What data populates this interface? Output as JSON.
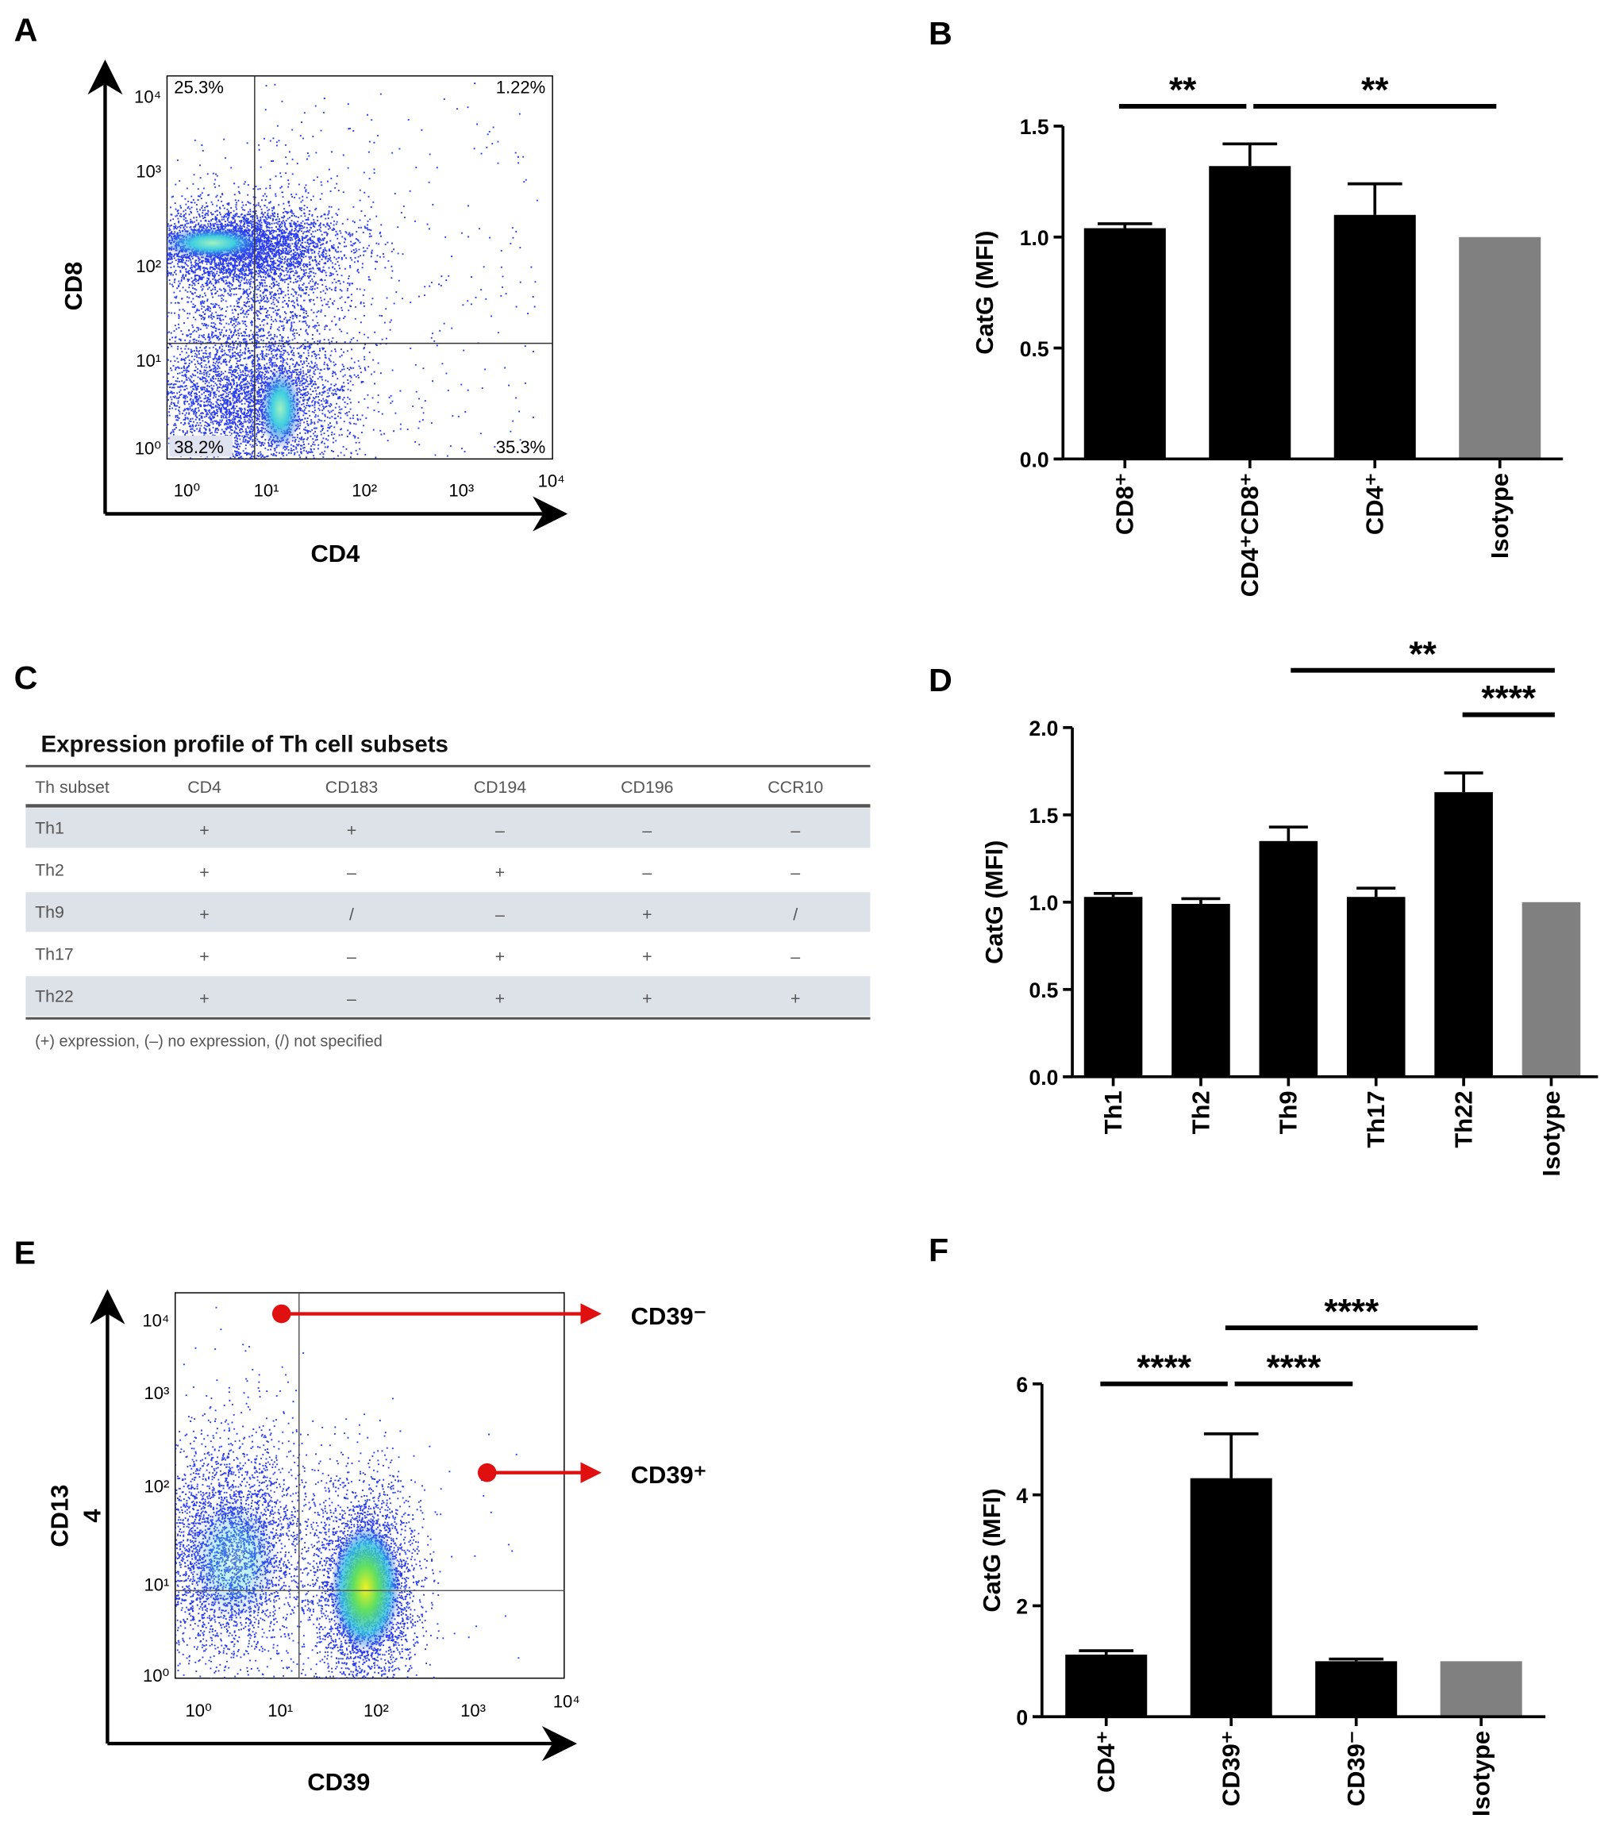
{
  "panels": {
    "a": "A",
    "b": "B",
    "c": "C",
    "d": "D",
    "e": "E",
    "f": "F"
  },
  "flow_a": {
    "xlabel": "CD4",
    "ylabel": "CD8",
    "quadrants": {
      "ul": "25.3%",
      "ur": "1.22%",
      "ll": "38.2%",
      "lr": "35.3%"
    },
    "yticks": [
      "10⁴",
      "10³",
      "10²",
      "10¹",
      "10⁰"
    ],
    "xticks": [
      "10⁰",
      "10¹",
      "10²",
      "10³",
      "10⁴"
    ]
  },
  "flow_e": {
    "xlabel": "CD39",
    "ylabel_line1": "CD13",
    "ylabel_line2": "4",
    "yticks": [
      "10⁴",
      "10³",
      "10²",
      "10¹",
      "10⁰"
    ],
    "xticks": [
      "10⁰",
      "10¹",
      "10²",
      "10³",
      "10⁴"
    ],
    "gates": [
      "CD39⁻",
      "CD39⁺"
    ],
    "arrow_color": "#e01010"
  },
  "table_c": {
    "title": "Expression profile of Th cell subsets",
    "headers": [
      "Th subset",
      "CD4",
      "CD183",
      "CD194",
      "CD196",
      "CCR10"
    ],
    "rows": [
      [
        "Th1",
        "+",
        "+",
        "–",
        "–",
        "–"
      ],
      [
        "Th2",
        "+",
        "–",
        "+",
        "–",
        "–"
      ],
      [
        "Th9",
        "+",
        "/",
        "–",
        "+",
        "/"
      ],
      [
        "Th17",
        "+",
        "–",
        "+",
        "+",
        "–"
      ],
      [
        "Th22",
        "+",
        "–",
        "+",
        "+",
        "+"
      ]
    ],
    "footnote": "(+) expression, (–) no expression, (/) not specified",
    "shade_color": "#dde1e8"
  },
  "chart_data": [
    {
      "id": "B",
      "type": "bar",
      "title": "",
      "xlabel": "",
      "ylabel": "CatG (MFI)",
      "ylim": [
        0,
        1.5
      ],
      "yticks": [
        "0.0",
        "0.5",
        "1.0",
        "1.5"
      ],
      "ytick_values": [
        0,
        0.5,
        1.0,
        1.5
      ],
      "categories": [
        "CD8⁺",
        "CD4⁺CD8⁺",
        "CD4⁺",
        "Isotype"
      ],
      "values": [
        1.04,
        1.32,
        1.1,
        1.0
      ],
      "error_upper": [
        1.06,
        1.42,
        1.24,
        null
      ],
      "colors": [
        "#000000",
        "#000000",
        "#000000",
        "#808080"
      ],
      "significance": [
        {
          "from": 0,
          "to": 1,
          "label": "**",
          "level": 0
        },
        {
          "from": 1,
          "to": 3,
          "label": "**",
          "level": 0
        }
      ]
    },
    {
      "id": "D",
      "type": "bar",
      "title": "",
      "xlabel": "",
      "ylabel": "CatG (MFI)",
      "ylim": [
        0,
        2.0
      ],
      "yticks": [
        "0.0",
        "0.5",
        "1.0",
        "1.5",
        "2.0"
      ],
      "ytick_values": [
        0,
        0.5,
        1.0,
        1.5,
        2.0
      ],
      "categories": [
        "Th1",
        "Th2",
        "Th9",
        "Th17",
        "Th22",
        "Isotype"
      ],
      "values": [
        1.03,
        0.99,
        1.35,
        1.03,
        1.63,
        1.0
      ],
      "error_upper": [
        1.05,
        1.02,
        1.43,
        1.08,
        1.74,
        null
      ],
      "colors": [
        "#000000",
        "#000000",
        "#000000",
        "#000000",
        "#000000",
        "#808080"
      ],
      "significance": [
        {
          "from": 2,
          "to": 5,
          "label": "**",
          "level": 1
        },
        {
          "from": 4,
          "to": 5,
          "label": "****",
          "level": 0
        }
      ]
    },
    {
      "id": "F",
      "type": "bar",
      "title": "",
      "xlabel": "",
      "ylabel": "CatG (MFI)",
      "ylim": [
        0,
        6
      ],
      "yticks": [
        "0",
        "2",
        "4",
        "6"
      ],
      "ytick_values": [
        0,
        2,
        4,
        6
      ],
      "categories": [
        "CD4⁺",
        "CD39⁺",
        "CD39⁻",
        "Isotype"
      ],
      "values": [
        1.12,
        4.3,
        1.0,
        1.0
      ],
      "error_upper": [
        1.19,
        5.1,
        1.04,
        null
      ],
      "colors": [
        "#000000",
        "#000000",
        "#000000",
        "#808080"
      ],
      "significance": [
        {
          "from": 0,
          "to": 1,
          "label": "****",
          "level": 0
        },
        {
          "from": 1,
          "to": 2,
          "label": "****",
          "level": 0
        },
        {
          "from": 1,
          "to": 3,
          "label": "****",
          "level": 1
        }
      ]
    }
  ]
}
